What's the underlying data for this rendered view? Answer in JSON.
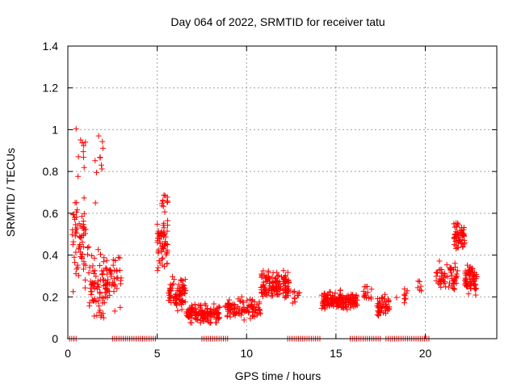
{
  "chart_data": {
    "type": "scatter",
    "title": "Day 064 of 2022, SRMTID for receiver tatu",
    "xlabel": "GPS time / hours",
    "ylabel": "SRMTID / TECUs",
    "xlim": [
      0,
      24
    ],
    "ylim": [
      0,
      1.4
    ],
    "xticks": [
      "0",
      "5",
      "10",
      "15",
      "20"
    ],
    "yticks": [
      "0",
      "0.2",
      "0.4",
      "0.6",
      "0.8",
      "1",
      "1.2",
      "1.4"
    ],
    "grid": true,
    "marker": "+",
    "color": "#ff0000",
    "series": [
      {
        "name": "SRMTID",
        "clusters": [
          {
            "x": [
              0.2,
              1.2
            ],
            "mean": 0.45,
            "spread": 0.3,
            "n": 70
          },
          {
            "x": [
              0.4,
              1.0
            ],
            "mean": 0.9,
            "spread": 0.18,
            "n": 10
          },
          {
            "x": [
              1.2,
              2.2
            ],
            "mean": 0.25,
            "spread": 0.22,
            "n": 80
          },
          {
            "x": [
              1.4,
              2.0
            ],
            "mean": 0.85,
            "spread": 0.25,
            "n": 10
          },
          {
            "x": [
              2.2,
              3.0
            ],
            "mean": 0.3,
            "spread": 0.2,
            "n": 40
          },
          {
            "x": [
              5.0,
              5.6
            ],
            "mean": 0.45,
            "spread": 0.18,
            "n": 60
          },
          {
            "x": [
              5.2,
              5.6
            ],
            "mean": 0.65,
            "spread": 0.08,
            "n": 12
          },
          {
            "x": [
              5.6,
              6.6
            ],
            "mean": 0.22,
            "spread": 0.1,
            "n": 80
          },
          {
            "x": [
              6.6,
              8.5
            ],
            "mean": 0.12,
            "spread": 0.06,
            "n": 140
          },
          {
            "x": [
              8.8,
              10.8
            ],
            "mean": 0.14,
            "spread": 0.07,
            "n": 100
          },
          {
            "x": [
              10.8,
              12.4
            ],
            "mean": 0.25,
            "spread": 0.1,
            "n": 140
          },
          {
            "x": [
              12.4,
              13.0
            ],
            "mean": 0.2,
            "spread": 0.05,
            "n": 10
          },
          {
            "x": [
              14.2,
              16.2
            ],
            "mean": 0.18,
            "spread": 0.06,
            "n": 170
          },
          {
            "x": [
              16.5,
              17.0
            ],
            "mean": 0.22,
            "spread": 0.06,
            "n": 15
          },
          {
            "x": [
              17.3,
              18.0
            ],
            "mean": 0.16,
            "spread": 0.07,
            "n": 50
          },
          {
            "x": [
              18.3,
              19.2
            ],
            "mean": 0.2,
            "spread": 0.05,
            "n": 10
          },
          {
            "x": [
              19.5,
              19.8
            ],
            "mean": 0.25,
            "spread": 0.04,
            "n": 6
          },
          {
            "x": [
              20.6,
              21.8
            ],
            "mean": 0.3,
            "spread": 0.1,
            "n": 60
          },
          {
            "x": [
              21.6,
              22.2
            ],
            "mean": 0.5,
            "spread": 0.12,
            "n": 60
          },
          {
            "x": [
              22.2,
              22.9
            ],
            "mean": 0.28,
            "spread": 0.1,
            "n": 70
          }
        ],
        "zero_ranges": [
          [
            0.1,
            0.5
          ],
          [
            2.5,
            5.0
          ],
          [
            7.5,
            9.0
          ],
          [
            12.3,
            14.2
          ],
          [
            15.8,
            17.5
          ],
          [
            17.8,
            20.3
          ]
        ]
      }
    ]
  }
}
